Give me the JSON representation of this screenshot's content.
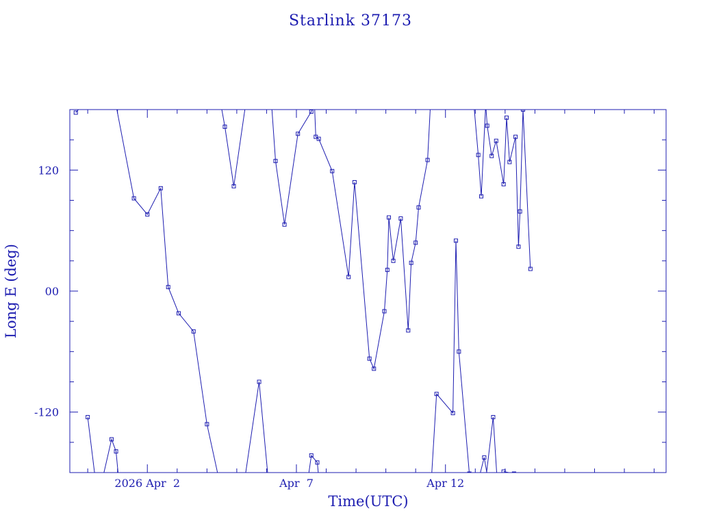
{
  "chart_data": {
    "type": "line",
    "title": "Starlink 37173",
    "xlabel": "Time(UTC)",
    "ylabel": "Long E (deg)",
    "x_tick_labels": [
      "2026 Apr  2",
      "Apr  7",
      "Apr 12"
    ],
    "y_tick_labels": [
      "-120",
      "00",
      "120"
    ],
    "y_ticks": [
      -120,
      0,
      120
    ],
    "x_ticks_days": [
      2,
      7,
      12
    ],
    "xlim_days": [
      -0.6,
      19.4
    ],
    "ylim": [
      -180,
      180
    ],
    "grid": false,
    "line_color": "#1c1cb0",
    "marker": "square",
    "segments": [
      [
        [
          -0.4,
          177
        ],
        [
          0.15,
          196
        ]
      ],
      [
        [
          0.85,
          200
        ],
        [
          1.55,
          92
        ],
        [
          2.0,
          76
        ],
        [
          2.45,
          102
        ],
        [
          2.7,
          4
        ],
        [
          3.05,
          -22
        ],
        [
          3.55,
          -40
        ],
        [
          4.0,
          -132
        ],
        [
          4.5,
          -200
        ]
      ],
      [
        [
          4.45,
          188
        ],
        [
          4.6,
          163
        ],
        [
          4.9,
          104
        ],
        [
          5.35,
          196
        ]
      ],
      [
        [
          6.15,
          192
        ],
        [
          6.3,
          129
        ],
        [
          6.6,
          66
        ],
        [
          7.05,
          156
        ],
        [
          7.5,
          178
        ],
        [
          7.6,
          190
        ],
        [
          7.65,
          153
        ],
        [
          7.75,
          151
        ],
        [
          8.2,
          119
        ],
        [
          8.75,
          14
        ],
        [
          8.95,
          108
        ],
        [
          9.45,
          -67
        ],
        [
          9.6,
          -77
        ],
        [
          9.95,
          -20
        ],
        [
          10.05,
          21
        ],
        [
          10.1,
          73
        ],
        [
          10.25,
          30
        ],
        [
          10.5,
          72
        ],
        [
          10.75,
          -39
        ],
        [
          10.85,
          28
        ],
        [
          11.0,
          48
        ],
        [
          11.1,
          83
        ],
        [
          11.4,
          130
        ],
        [
          11.5,
          188
        ]
      ],
      [
        [
          0.0,
          -125
        ],
        [
          0.25,
          -185
        ]
      ],
      [
        [
          0.35,
          -205
        ],
        [
          0.8,
          -147
        ],
        [
          0.95,
          -159
        ],
        [
          1.1,
          -205
        ]
      ],
      [
        [
          5.2,
          -200
        ],
        [
          5.75,
          -90
        ],
        [
          6.05,
          -185
        ]
      ],
      [
        [
          7.3,
          -205
        ],
        [
          7.5,
          -163
        ],
        [
          7.7,
          -170
        ],
        [
          7.8,
          -200
        ]
      ],
      [
        [
          11.5,
          -200
        ],
        [
          11.7,
          -102
        ],
        [
          12.25,
          -121
        ],
        [
          12.35,
          50
        ],
        [
          12.45,
          -60
        ],
        [
          12.8,
          -181
        ],
        [
          13.05,
          -194
        ],
        [
          13.3,
          -165
        ],
        [
          13.5,
          -200
        ]
      ],
      [
        [
          13.3,
          -200
        ],
        [
          13.6,
          -125
        ],
        [
          13.75,
          -195
        ]
      ],
      [
        [
          12.95,
          186
        ],
        [
          13.1,
          135
        ],
        [
          13.2,
          94
        ],
        [
          13.35,
          185
        ],
        [
          13.4,
          164
        ],
        [
          13.55,
          134
        ],
        [
          13.7,
          149
        ],
        [
          13.95,
          106
        ],
        [
          14.05,
          172
        ],
        [
          14.15,
          128
        ],
        [
          14.35,
          153
        ],
        [
          14.45,
          44
        ],
        [
          14.5,
          79
        ],
        [
          14.6,
          180
        ],
        [
          14.85,
          22
        ]
      ],
      [
        [
          13.95,
          -179
        ],
        [
          14.3,
          -181
        ],
        [
          14.5,
          -200
        ]
      ]
    ],
    "markers_excluded_from_lines_note": ""
  }
}
